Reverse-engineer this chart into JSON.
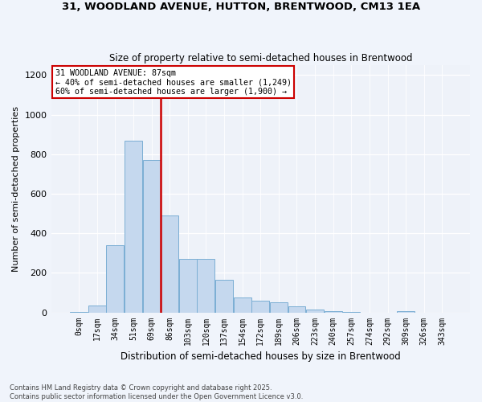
{
  "title1": "31, WOODLAND AVENUE, HUTTON, BRENTWOOD, CM13 1EA",
  "title2": "Size of property relative to semi-detached houses in Brentwood",
  "xlabel": "Distribution of semi-detached houses by size in Brentwood",
  "ylabel": "Number of semi-detached properties",
  "footnote": "Contains HM Land Registry data © Crown copyright and database right 2025.\nContains public sector information licensed under the Open Government Licence v3.0.",
  "bar_labels": [
    "0sqm",
    "17sqm",
    "34sqm",
    "51sqm",
    "69sqm",
    "86sqm",
    "103sqm",
    "120sqm",
    "137sqm",
    "154sqm",
    "172sqm",
    "189sqm",
    "206sqm",
    "223sqm",
    "240sqm",
    "257sqm",
    "274sqm",
    "292sqm",
    "309sqm",
    "326sqm",
    "343sqm"
  ],
  "bar_values": [
    2,
    35,
    340,
    870,
    770,
    490,
    270,
    270,
    165,
    75,
    60,
    50,
    30,
    15,
    8,
    3,
    0,
    0,
    8,
    0,
    0
  ],
  "bar_color": "#c5d8ee",
  "bar_edge_color": "#7baed4",
  "vline_color": "#cc0000",
  "vline_x_index": 4.5,
  "annotation_title": "31 WOODLAND AVENUE: 87sqm",
  "annotation_line1": "← 40% of semi-detached houses are smaller (1,249)",
  "annotation_line2": "60% of semi-detached houses are larger (1,900) →",
  "annotation_box_color": "#cc0000",
  "ylim": [
    0,
    1250
  ],
  "yticks": [
    0,
    200,
    400,
    600,
    800,
    1000,
    1200
  ],
  "bg_color": "#f0f4fb",
  "plot_bg": "#eef2f9"
}
